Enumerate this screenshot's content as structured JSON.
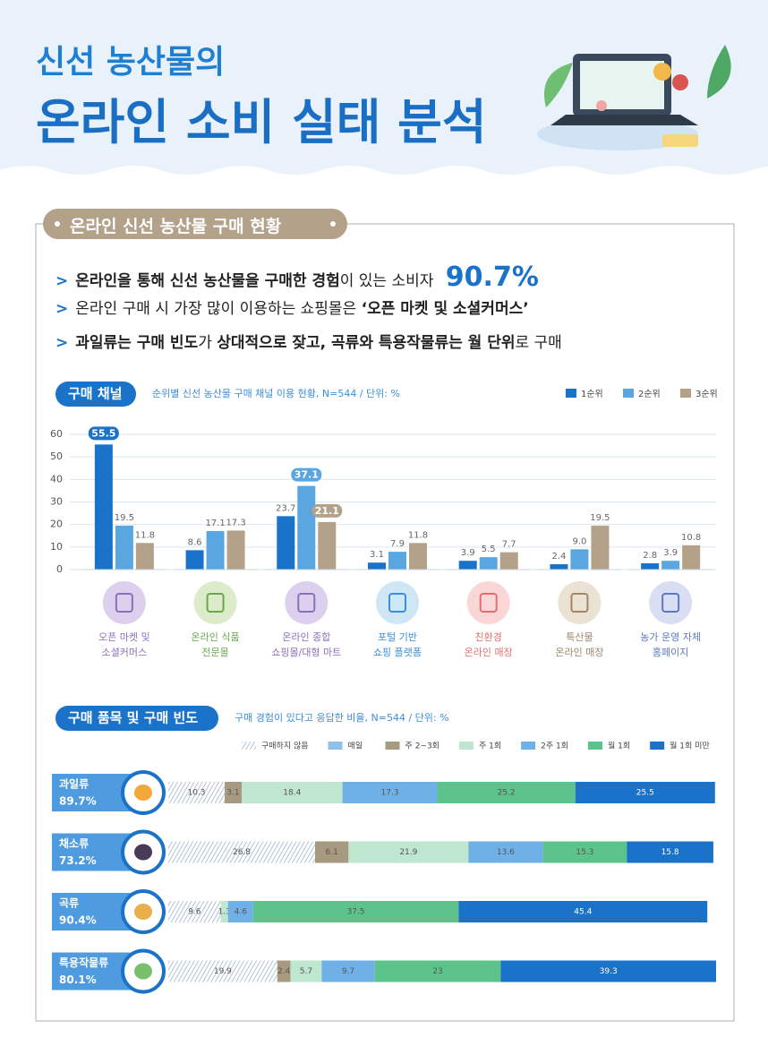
{
  "header": {
    "line1": "신선 농산물의",
    "line2": "온라인 소비 실태 분석"
  },
  "section_title": "온라인 신선 농산물 구매 현황",
  "bullets": [
    [
      {
        "text": "온라인을 통해 신선 농산물을 구매한 경험",
        "emphasis": "bold"
      },
      {
        "text": "이 있는 소비자 "
      },
      {
        "text": "90.7%",
        "emphasis": "highlight"
      }
    ],
    [
      {
        "text": "온라인 구매 시 가장 많이 이용하는 쇼핑몰은 "
      },
      {
        "text": "‘오픈 마켓 및 소셜커머스’",
        "emphasis": "bold"
      }
    ],
    [
      {
        "text": "과일류는 구매 빈도",
        "emphasis": "bold"
      },
      {
        "text": "가 "
      },
      {
        "text": "상대적으로 잦고, 곡류와 특용작물류는 월 단위",
        "emphasis": "bold"
      },
      {
        "text": "로 구매"
      }
    ]
  ],
  "chart_data": [
    {
      "type": "bar",
      "title": "구매 채널",
      "subtitle": "순위별 신선 농산물 구매 채널 이용 현황, N=544 / 단위: %",
      "categories": [
        "오픈 마켓 및\n소셜커머스",
        "온라인 식품\n전문몰",
        "온라인 종합\n쇼핑몰/대형 마트",
        "포털 기반\n쇼핑 플랫폼",
        "친환경\n온라인 매장",
        "특산물\n온라인 매장",
        "농가 운영 자체\n홈페이지"
      ],
      "series": [
        {
          "name": "1순위",
          "color": "#1a73c8",
          "values": [
            55.5,
            8.6,
            23.7,
            3.1,
            3.9,
            2.4,
            2.8
          ]
        },
        {
          "name": "2순위",
          "color": "#5aa6e0",
          "values": [
            19.5,
            17.1,
            37.1,
            7.9,
            5.5,
            9.0,
            3.9
          ],
          "value_labels": [
            "19.5",
            "17.1",
            "37.1",
            "7.9",
            "5.5",
            "9.0",
            "3.9"
          ]
        },
        {
          "name": "3순위",
          "color": "#b3a289",
          "values": [
            11.8,
            17.3,
            21.1,
            11.8,
            7.7,
            19.5,
            10.8
          ]
        }
      ],
      "ylim": [
        0,
        60
      ],
      "yticks": [
        0,
        10,
        20,
        30,
        40,
        50,
        60
      ],
      "grid": true
    },
    {
      "type": "stacked-bar-horizontal",
      "title": "구매 품목 및 구매 빈도",
      "subtitle": "구매 경험이 있다고 응답한 비율, N=544 / 단위: %",
      "categories": [
        "과일류",
        "채소류",
        "곡류",
        "특용작물류"
      ],
      "rates": [
        89.7,
        73.2,
        90.4,
        80.1
      ],
      "rate_labels": [
        "89.7%",
        "73.2%",
        "90.4%",
        "80.1%"
      ],
      "series": [
        {
          "name": "구매하지 않음",
          "color": "#9fb3cf",
          "hatch": true,
          "values": [
            10.3,
            26.8,
            9.6,
            19.9
          ]
        },
        {
          "name": "매일",
          "color": "#8ec0ea",
          "values": [
            null,
            null,
            null,
            null
          ]
        },
        {
          "name": "주 2~3회",
          "color": "#a89a80",
          "values": [
            3.1,
            6.1,
            null,
            2.4
          ]
        },
        {
          "name": "주 1회",
          "color": "#bfe6cf",
          "values": [
            18.4,
            21.9,
            1.3,
            5.7
          ]
        },
        {
          "name": "2주 1회",
          "color": "#6fb1e6",
          "values": [
            17.3,
            13.6,
            4.6,
            9.7
          ]
        },
        {
          "name": "월 1회",
          "color": "#5cc48a",
          "values": [
            25.2,
            15.3,
            37.5,
            23
          ]
        },
        {
          "name": "월 1회 미만",
          "color": "#1a73c8",
          "values": [
            25.5,
            15.8,
            45.4,
            39.3
          ]
        }
      ],
      "xlim": [
        0,
        100
      ]
    }
  ]
}
